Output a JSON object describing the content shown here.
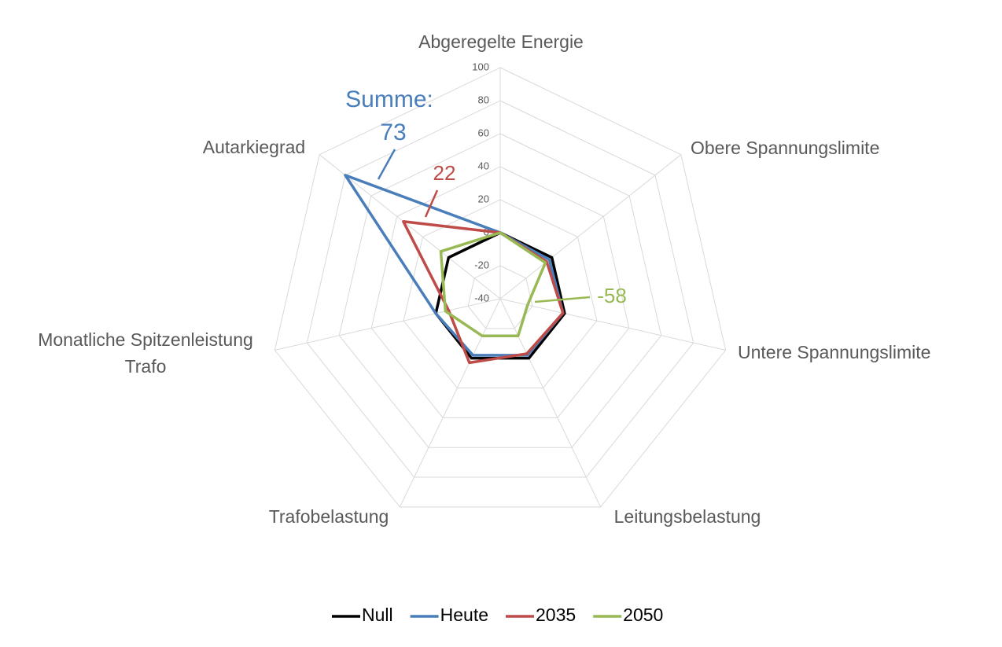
{
  "chart_data": {
    "type": "radar",
    "categories": [
      "Abgeregelte Energie",
      "Obere Spannungslimite",
      "Untere Spannungslimite",
      "Leitungsbelastung",
      "Trafobelastung",
      "Monatliche Spitzenleistung Trafo",
      "Autarkiegrad"
    ],
    "series": [
      {
        "name": "Null",
        "color": "#000000",
        "values": [
          0,
          0,
          0,
          0,
          0,
          0,
          0
        ]
      },
      {
        "name": "Heute",
        "color": "#4a7ebb",
        "values": [
          0,
          -2,
          -1,
          -2,
          -2,
          0,
          80
        ]
      },
      {
        "name": "2035",
        "color": "#be4b48",
        "values": [
          0,
          -4,
          -1,
          -3,
          3,
          -8,
          35
        ]
      },
      {
        "name": "2050",
        "color": "#98b954",
        "values": [
          0,
          -5,
          -23,
          -15,
          -15,
          -6,
          6
        ]
      }
    ],
    "ylim": [
      -40,
      100
    ],
    "yticks": [
      -40,
      -20,
      0,
      20,
      40,
      60,
      80,
      100
    ],
    "grid": true,
    "legend": "bottom",
    "annotations": [
      {
        "text": "Summe:",
        "color": "#4a7ebb"
      },
      {
        "text": "73",
        "color": "#4a7ebb"
      },
      {
        "text": "22",
        "color": "#be4b48"
      },
      {
        "text": "-58",
        "color": "#98b954"
      }
    ]
  }
}
